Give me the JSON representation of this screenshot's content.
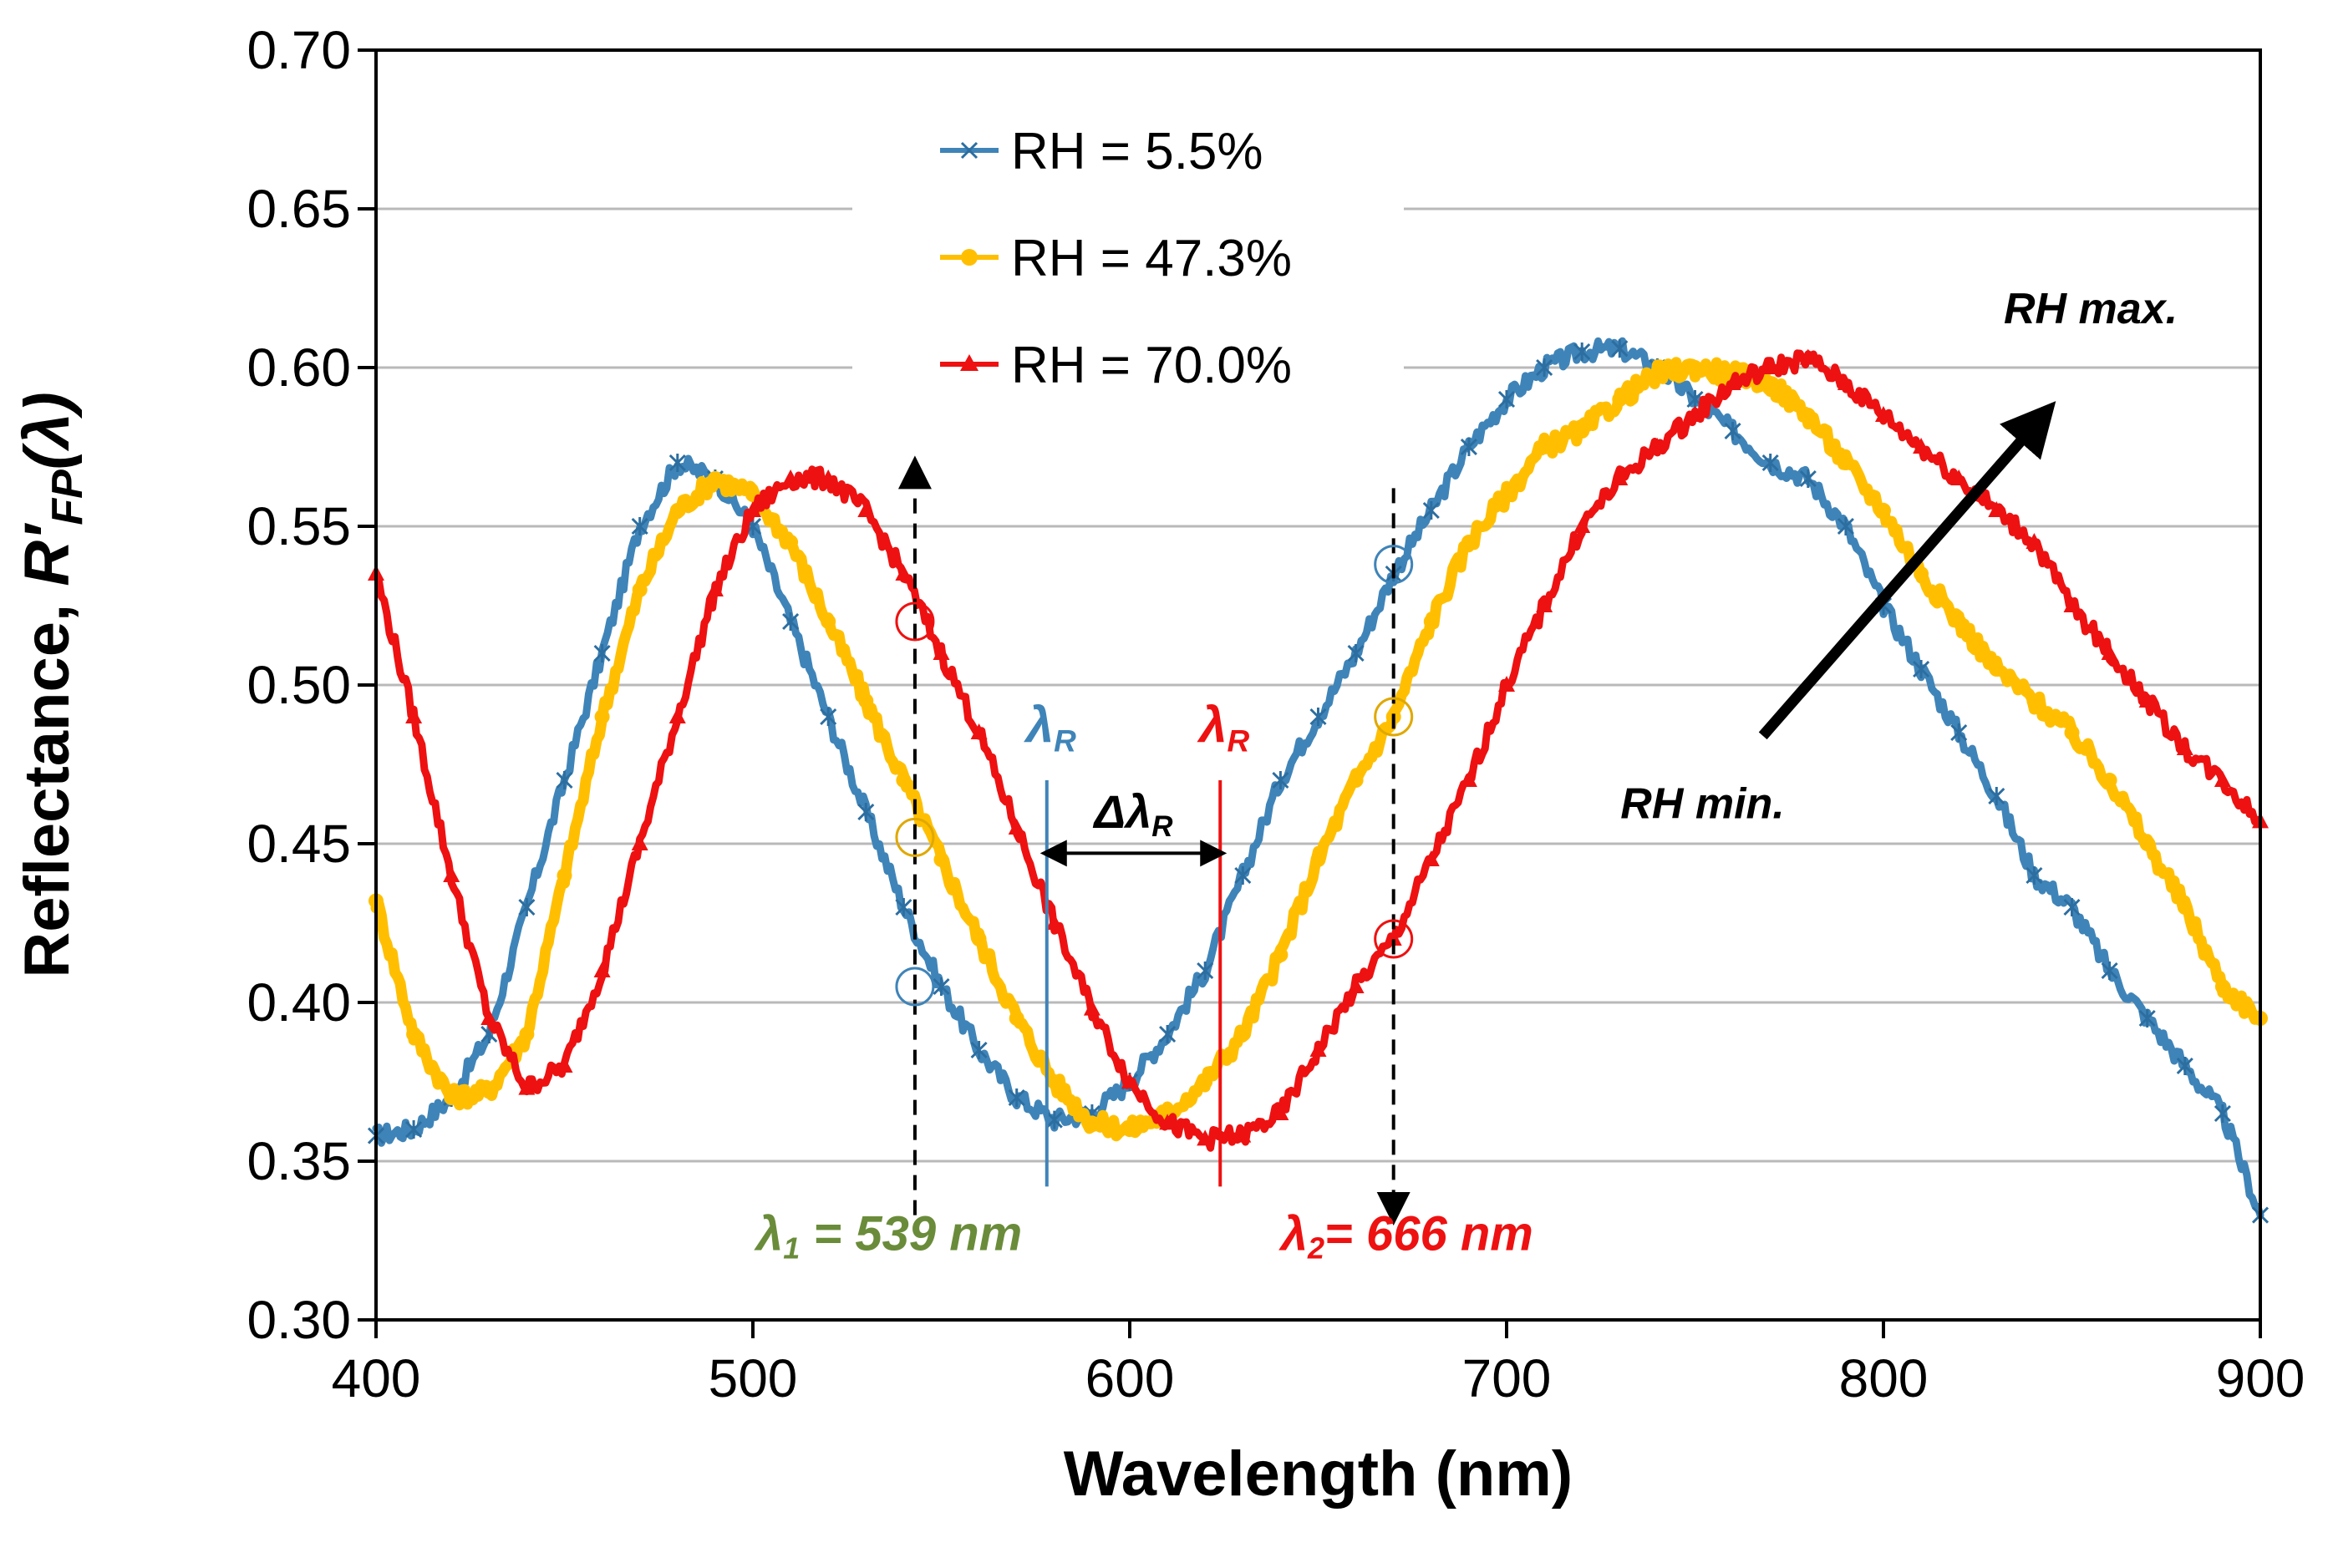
{
  "chart_data": {
    "type": "line",
    "title": "",
    "xlabel": "Wavelength (nm)",
    "ylabel": {
      "prefix": "Reflectance, ",
      "symbol": "R′",
      "subscript": "FP",
      "suffix": "(λ)"
    },
    "xlim": [
      400,
      900
    ],
    "ylim": [
      0.3,
      0.7
    ],
    "xticks": [
      400,
      500,
      600,
      700,
      800,
      900
    ],
    "xtick_labels": [
      "400",
      "500",
      "600",
      "700",
      "800",
      "900"
    ],
    "yticks": [
      0.3,
      0.35,
      0.4,
      0.45,
      0.5,
      0.55,
      0.6,
      0.65,
      0.7
    ],
    "ytick_labels": [
      "0.30",
      "0.35",
      "0.40",
      "0.45",
      "0.50",
      "0.55",
      "0.60",
      "0.65",
      "0.70"
    ],
    "grid": "horizontal",
    "legend_position": "top-center",
    "colors": {
      "blue": "#3f84b8",
      "yellow": "#ffbf00",
      "red": "#ee1111"
    },
    "series": [
      {
        "name": "RH = 5.5%",
        "color": "#3f84b8",
        "marker": "star",
        "x": [
          400,
          410,
          420,
          430,
          440,
          450,
          460,
          470,
          480,
          490,
          500,
          510,
          520,
          530,
          540,
          550,
          560,
          570,
          580,
          590,
          600,
          610,
          620,
          630,
          640,
          650,
          660,
          670,
          680,
          690,
          700,
          710,
          720,
          730,
          740,
          750,
          760,
          770,
          780,
          790,
          800,
          810,
          820,
          830,
          840,
          850,
          860,
          870,
          880,
          890,
          900
        ],
        "y": [
          0.358,
          0.36,
          0.37,
          0.39,
          0.43,
          0.47,
          0.51,
          0.55,
          0.57,
          0.565,
          0.55,
          0.52,
          0.49,
          0.46,
          0.43,
          0.405,
          0.385,
          0.37,
          0.363,
          0.365,
          0.375,
          0.39,
          0.41,
          0.44,
          0.47,
          0.49,
          0.51,
          0.535,
          0.555,
          0.575,
          0.59,
          0.6,
          0.605,
          0.606,
          0.6,
          0.59,
          0.58,
          0.57,
          0.565,
          0.55,
          0.525,
          0.505,
          0.485,
          0.465,
          0.44,
          0.43,
          0.41,
          0.395,
          0.38,
          0.365,
          0.333
        ]
      },
      {
        "name": "RH = 47.3%",
        "color": "#ffbf00",
        "marker": "circle",
        "x": [
          400,
          410,
          420,
          430,
          440,
          450,
          460,
          470,
          480,
          490,
          500,
          510,
          520,
          530,
          540,
          550,
          560,
          570,
          580,
          590,
          600,
          610,
          620,
          630,
          640,
          650,
          660,
          670,
          680,
          690,
          700,
          710,
          720,
          730,
          740,
          750,
          760,
          770,
          780,
          790,
          800,
          810,
          820,
          830,
          840,
          850,
          860,
          870,
          880,
          890,
          900
        ],
        "y": [
          0.432,
          0.39,
          0.37,
          0.372,
          0.39,
          0.44,
          0.49,
          0.53,
          0.555,
          0.565,
          0.56,
          0.545,
          0.52,
          0.495,
          0.47,
          0.445,
          0.42,
          0.395,
          0.375,
          0.362,
          0.36,
          0.365,
          0.375,
          0.39,
          0.415,
          0.445,
          0.47,
          0.49,
          0.52,
          0.545,
          0.56,
          0.575,
          0.58,
          0.59,
          0.598,
          0.6,
          0.598,
          0.595,
          0.585,
          0.57,
          0.555,
          0.535,
          0.52,
          0.505,
          0.495,
          0.485,
          0.47,
          0.45,
          0.43,
          0.405,
          0.395
        ]
      },
      {
        "name": "RH = 70.0%",
        "color": "#ee1111",
        "marker": "triangle",
        "x": [
          400,
          410,
          420,
          430,
          440,
          450,
          460,
          470,
          480,
          490,
          500,
          510,
          520,
          530,
          540,
          550,
          560,
          570,
          580,
          590,
          600,
          610,
          620,
          630,
          640,
          650,
          660,
          670,
          680,
          690,
          700,
          710,
          720,
          730,
          740,
          750,
          760,
          770,
          780,
          790,
          800,
          810,
          820,
          830,
          840,
          850,
          860,
          870,
          880,
          890,
          900
        ],
        "y": [
          0.535,
          0.49,
          0.44,
          0.395,
          0.373,
          0.38,
          0.41,
          0.45,
          0.49,
          0.53,
          0.555,
          0.565,
          0.565,
          0.555,
          0.535,
          0.51,
          0.485,
          0.455,
          0.425,
          0.398,
          0.375,
          0.362,
          0.357,
          0.358,
          0.365,
          0.385,
          0.405,
          0.42,
          0.445,
          0.47,
          0.5,
          0.525,
          0.55,
          0.565,
          0.575,
          0.585,
          0.595,
          0.6,
          0.603,
          0.595,
          0.585,
          0.575,
          0.565,
          0.555,
          0.545,
          0.525,
          0.51,
          0.495,
          0.48,
          0.47,
          0.457
        ]
      }
    ],
    "annotations": {
      "lambda1": {
        "x": 543,
        "symbol": "λ",
        "sub": "1",
        "text": " = 539 nm",
        "color": "#6a8c3a"
      },
      "lambda2": {
        "x": 670,
        "symbol": "λ",
        "sub": "2",
        "text": "= 666 nm",
        "color": "#ee1111"
      },
      "lambdaR_blue": {
        "x": 578,
        "symbol": "λ",
        "sub": "R",
        "color": "#3f84b8"
      },
      "lambdaR_red": {
        "x": 624,
        "symbol": "λ",
        "sub": "R",
        "color": "#ee1111"
      },
      "delta": {
        "prefix": "Δλ",
        "sub": "R"
      },
      "rh_min": "RH min.",
      "rh_max": "RH max.",
      "circles_at_lambda1": [
        0.405,
        0.452,
        0.52
      ],
      "circles_at_lambda2": [
        0.538,
        0.49,
        0.42
      ]
    }
  }
}
